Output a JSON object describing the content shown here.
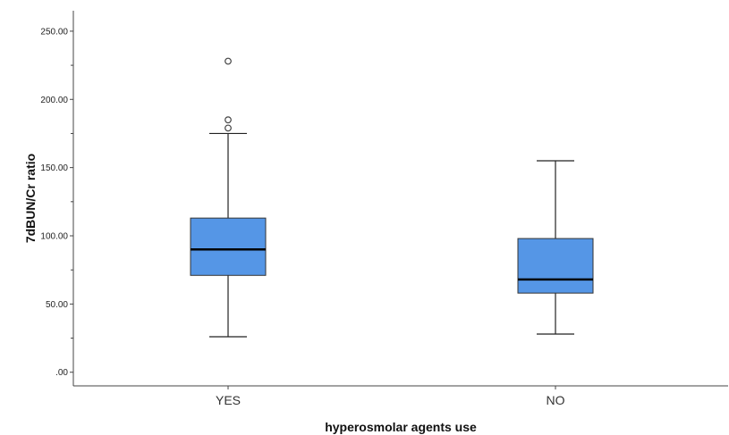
{
  "chart_data": {
    "type": "boxplot",
    "xlabel": "hyperosmolar agents use",
    "ylabel": "7dBUN/Cr ratio",
    "ylim": [
      -10,
      265
    ],
    "yticks": [
      ".00",
      "50.00",
      "100.00",
      "150.00",
      "200.00",
      "250.00"
    ],
    "ytick_values": [
      0,
      50,
      100,
      150,
      200,
      250
    ],
    "grid": false,
    "box_color": "#5596e6",
    "categories": [
      "YES",
      "NO"
    ],
    "boxes": [
      {
        "category": "YES",
        "whisker_low": 26,
        "q1": 71,
        "median": 90,
        "q3": 113,
        "whisker_high": 175,
        "outliers": [
          179,
          185,
          228
        ]
      },
      {
        "category": "NO",
        "whisker_low": 28,
        "q1": 58,
        "median": 68,
        "q3": 98,
        "whisker_high": 155,
        "outliers": []
      }
    ]
  }
}
